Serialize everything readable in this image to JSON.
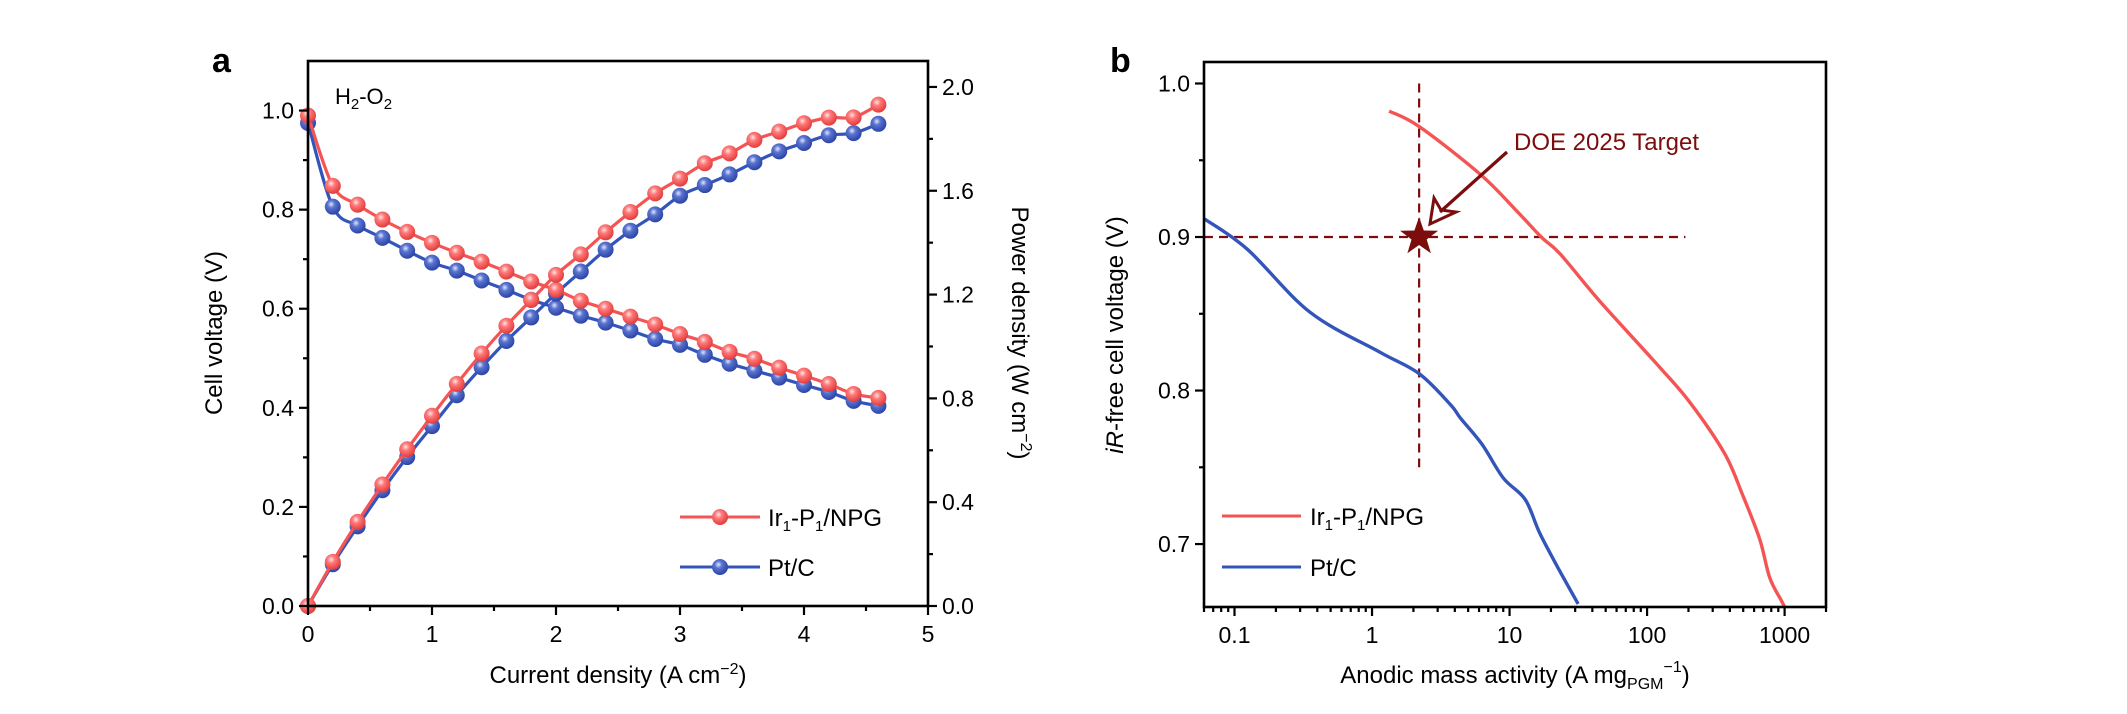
{
  "figure": {
    "panels": [
      "a",
      "b"
    ]
  },
  "chart_data": [
    {
      "panel_label": "a",
      "type": "line",
      "title": "",
      "annotation": {
        "base": "H",
        "sub1": "2",
        "mid": "-O",
        "sub2": "2",
        "text": "H2-O2"
      },
      "xlabel": {
        "main": "Current density (A cm",
        "sup": "−2",
        "close": ")"
      },
      "ylabel": "Cell voltage (V)",
      "y2label": {
        "main": "Power density (W cm",
        "sup": "−2",
        "close": ")"
      },
      "xlim": [
        0,
        5
      ],
      "ylim": [
        0,
        1.1
      ],
      "y2lim": [
        0,
        2.1
      ],
      "xticks": [
        "0",
        "1",
        "2",
        "3",
        "4",
        "5"
      ],
      "xtick_values": [
        0,
        1,
        2,
        3,
        4,
        5
      ],
      "yticks": [
        "0.0",
        "0.2",
        "0.4",
        "0.6",
        "0.8",
        "1.0"
      ],
      "ytick_values": [
        0,
        0.2,
        0.4,
        0.6,
        0.8,
        1.0
      ],
      "y2ticks": [
        "0.0",
        "0.4",
        "0.8",
        "1.2",
        "1.6",
        "2.0"
      ],
      "y2tick_values": [
        0,
        0.4,
        0.8,
        1.2,
        1.6,
        2.0
      ],
      "grid": false,
      "legend_position": "bottom-right",
      "x": [
        0,
        0.2,
        0.4,
        0.6,
        0.8,
        1.0,
        1.2,
        1.4,
        1.6,
        1.8,
        2.0,
        2.2,
        2.4,
        2.6,
        2.8,
        3.0,
        3.2,
        3.4,
        3.6,
        3.8,
        4.0,
        4.2,
        4.4,
        4.6
      ],
      "series": [
        {
          "name": "Ir1-P1/NPG",
          "legend": {
            "a": "Ir",
            "s1": "1",
            "b": "-P",
            "s2": "1",
            "c": "/NPG"
          },
          "color": "#f55454",
          "voltage": [
            0.99,
            0.848,
            0.81,
            0.78,
            0.755,
            0.733,
            0.713,
            0.695,
            0.675,
            0.655,
            0.638,
            0.616,
            0.6,
            0.584,
            0.568,
            0.549,
            0.533,
            0.513,
            0.499,
            0.481,
            0.465,
            0.448,
            0.428,
            0.42
          ],
          "power": [
            0.0,
            0.17,
            0.324,
            0.468,
            0.604,
            0.733,
            0.856,
            0.973,
            1.08,
            1.179,
            1.276,
            1.355,
            1.44,
            1.518,
            1.59,
            1.647,
            1.706,
            1.744,
            1.796,
            1.828,
            1.86,
            1.882,
            1.883,
            1.932
          ]
        },
        {
          "name": "Pt/C",
          "legend": {
            "a": "Pt/C"
          },
          "color": "#3355bb",
          "voltage": [
            0.975,
            0.806,
            0.768,
            0.743,
            0.717,
            0.693,
            0.677,
            0.657,
            0.638,
            0.618,
            0.602,
            0.586,
            0.572,
            0.556,
            0.539,
            0.527,
            0.507,
            0.489,
            0.475,
            0.461,
            0.446,
            0.432,
            0.414,
            0.404
          ],
          "power": [
            0.0,
            0.161,
            0.307,
            0.446,
            0.574,
            0.693,
            0.812,
            0.92,
            1.021,
            1.112,
            1.204,
            1.289,
            1.373,
            1.446,
            1.509,
            1.581,
            1.622,
            1.663,
            1.71,
            1.752,
            1.784,
            1.814,
            1.822,
            1.858
          ]
        }
      ]
    },
    {
      "panel_label": "b",
      "type": "line",
      "title": "",
      "xlabel": {
        "main": "Anodic mass activity (A mg",
        "sub": "PGM",
        "sup": "−1",
        "close": ")"
      },
      "ylabel": {
        "ital": "iR",
        "rest": "-free cell voltage (V)"
      },
      "xscale": "log",
      "xlim": [
        0.06,
        2000
      ],
      "ylim": [
        0.659,
        1.014
      ],
      "xticks": [
        "0.1",
        "1",
        "10",
        "100",
        "1000"
      ],
      "xtick_values": [
        0.1,
        1,
        10,
        100,
        1000
      ],
      "yticks": [
        "0.7",
        "0.8",
        "0.9",
        "1.0"
      ],
      "ytick_values": [
        0.7,
        0.8,
        0.9,
        1.0
      ],
      "grid": false,
      "legend_position": "bottom-left",
      "target": {
        "label": "DOE 2025 Target",
        "x": 2.2,
        "y": 0.9,
        "hline": {
          "from_x": 0.06,
          "to_x": 190
        },
        "vline": {
          "from_y": 1.0,
          "to_y": 0.75
        },
        "color": "#7b0d0d"
      },
      "series": [
        {
          "name": "Ir1-P1/NPG",
          "legend": {
            "a": "Ir",
            "s1": "1",
            "b": "-P",
            "s2": "1",
            "c": "/NPG"
          },
          "color": "#f55454",
          "x": [
            1.33,
            2.2,
            6.1,
            11,
            17,
            23.3,
            45.5,
            124,
            206,
            366,
            495,
            660,
            780,
            950,
            1000
          ],
          "y": [
            0.982,
            0.972,
            0.941,
            0.918,
            0.9,
            0.889,
            0.858,
            0.815,
            0.792,
            0.759,
            0.732,
            0.703,
            0.678,
            0.663,
            0.659
          ]
        },
        {
          "name": "Pt/C",
          "legend": {
            "a": "Pt/C"
          },
          "color": "#3355bb",
          "x": [
            0.06,
            0.124,
            0.354,
            1.14,
            2.2,
            3.7,
            4.4,
            6.3,
            9.0,
            13,
            16.6,
            23,
            31.5
          ],
          "y": [
            0.912,
            0.892,
            0.851,
            0.825,
            0.811,
            0.791,
            0.782,
            0.765,
            0.743,
            0.729,
            0.707,
            0.683,
            0.661
          ]
        }
      ]
    }
  ]
}
